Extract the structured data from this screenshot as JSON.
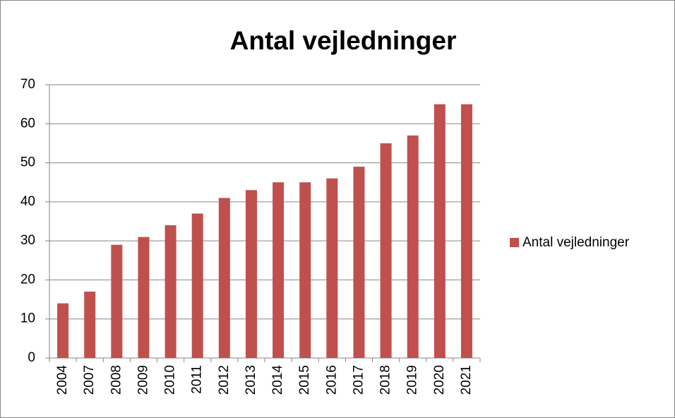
{
  "chart_data": {
    "type": "bar",
    "title": "Antal vejledninger",
    "categories": [
      "2004",
      "2007",
      "2008",
      "2009",
      "2010",
      "2011",
      "2012",
      "2013",
      "2014",
      "2015",
      "2016",
      "2017",
      "2018",
      "2019",
      "2020",
      "2021"
    ],
    "series": [
      {
        "name": "Antal vejledninger",
        "color": "#c0504d",
        "values": [
          14,
          17,
          29,
          31,
          34,
          37,
          41,
          43,
          45,
          45,
          46,
          49,
          55,
          57,
          65,
          65
        ]
      }
    ],
    "ylim": [
      0,
      70
    ],
    "yticks": [
      0,
      10,
      20,
      30,
      40,
      50,
      60,
      70
    ],
    "grid": true,
    "legend": "right"
  }
}
